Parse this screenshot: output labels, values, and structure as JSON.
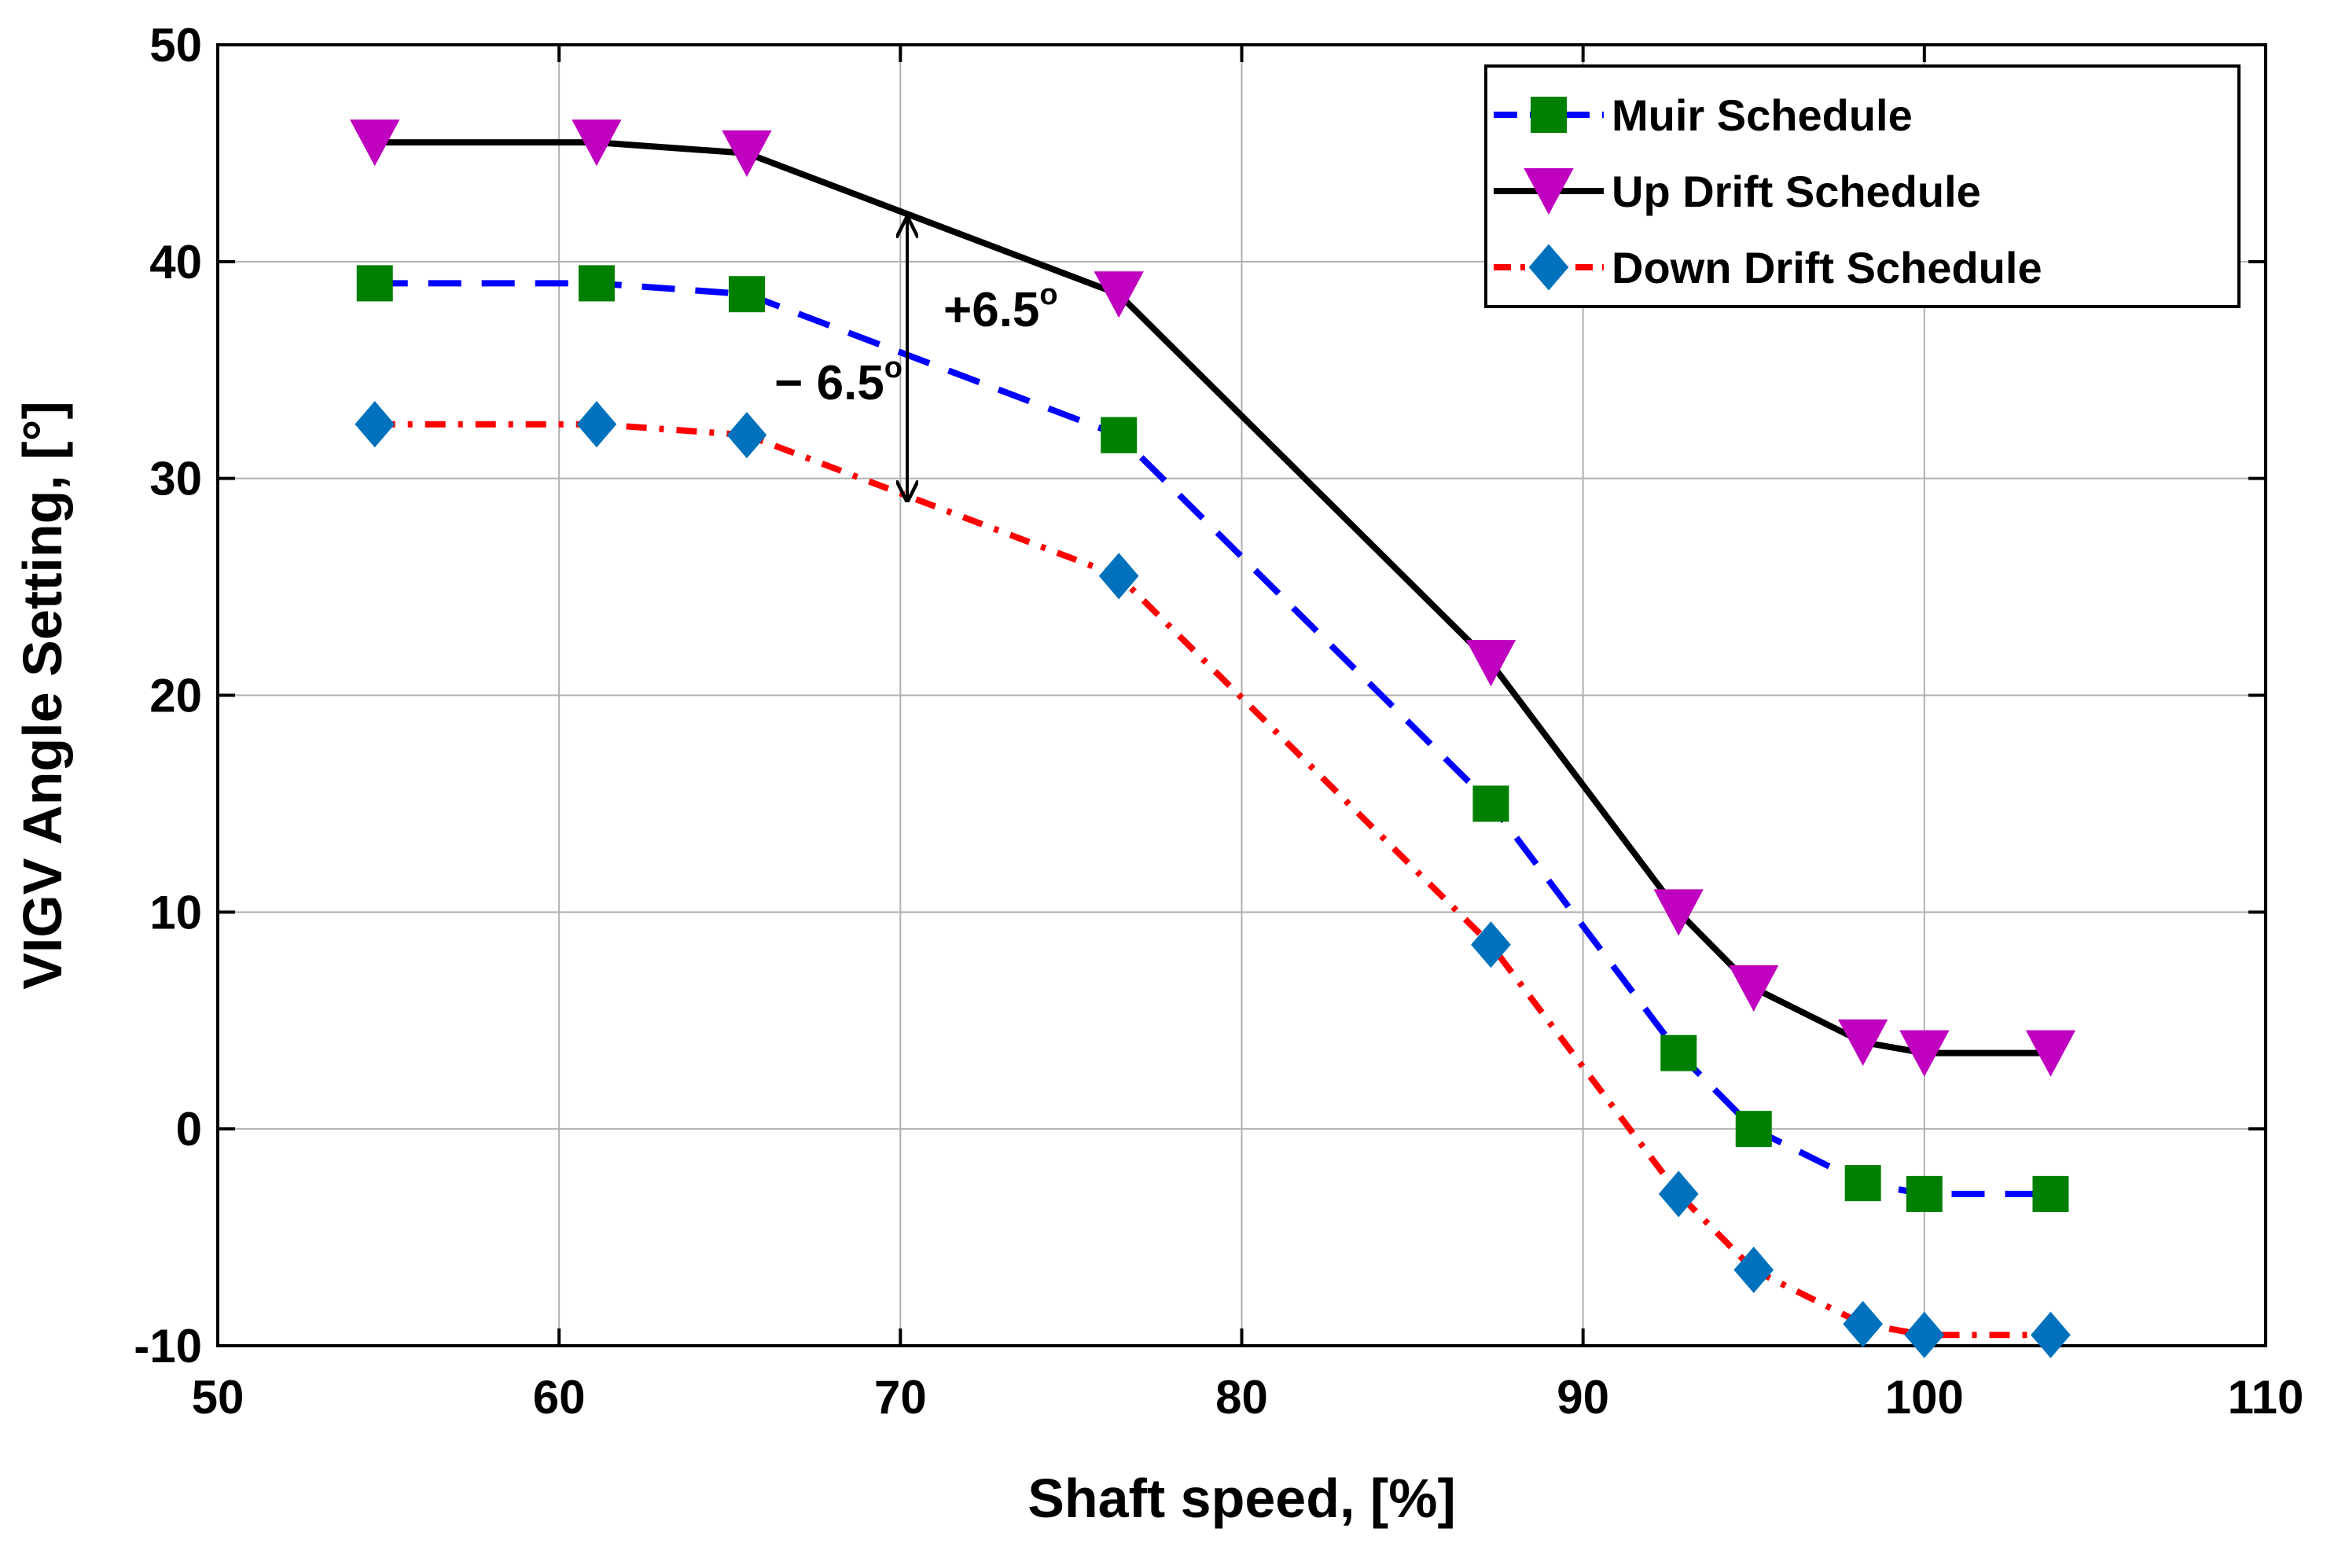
{
  "chart_data": {
    "type": "line",
    "title": "",
    "xlabel": "Shaft speed, [%]",
    "ylabel": "VIGV Angle Setting, [°]",
    "xlim": [
      50,
      110
    ],
    "ylim": [
      -10,
      50
    ],
    "xticks": [
      50,
      60,
      70,
      80,
      90,
      100,
      110
    ],
    "yticks": [
      -10,
      0,
      10,
      20,
      30,
      40,
      50
    ],
    "xtick_labels": [
      "50",
      "60",
      "70",
      "80",
      "90",
      "100",
      "110"
    ],
    "ytick_labels": [
      "-10",
      "0",
      "10",
      "20",
      "30",
      "40",
      "50"
    ],
    "grid": true,
    "legend_position": "top-right",
    "x": [
      54.6,
      61.1,
      65.5,
      76.4,
      87.3,
      92.8,
      95.0,
      98.2,
      100.0,
      103.7
    ],
    "series": [
      {
        "name": "Muir Schedule",
        "values": [
          39,
          39,
          38.5,
          32,
          15,
          3.5,
          0,
          -2.5,
          -3,
          -3
        ],
        "line_color": "#0000ff",
        "marker_color": "#008000",
        "line_style": "dashed",
        "marker": "square"
      },
      {
        "name": "Up Drift Schedule",
        "values": [
          45.5,
          45.5,
          45,
          38.5,
          21.5,
          10,
          6.5,
          4,
          3.5,
          3.5
        ],
        "line_color": "#000000",
        "marker_color": "#bf00bf",
        "line_style": "solid",
        "marker": "triangle-down"
      },
      {
        "name": "Down Drift Schedule",
        "values": [
          32.5,
          32.5,
          32,
          25.5,
          8.5,
          -3,
          -6.5,
          -9,
          -9.5,
          -9.5
        ],
        "line_color": "#ff0000",
        "marker_color": "#0072bd",
        "line_style": "dash-dot",
        "marker": "diamond"
      }
    ],
    "annotations": [
      {
        "text": "+6.5",
        "superscript": "o",
        "x": 70.2,
        "from": 35.5,
        "to": 42
      },
      {
        "text": "− 6.5",
        "superscript": "o",
        "x": 70.2,
        "from": 35.5,
        "to": 29
      }
    ]
  }
}
